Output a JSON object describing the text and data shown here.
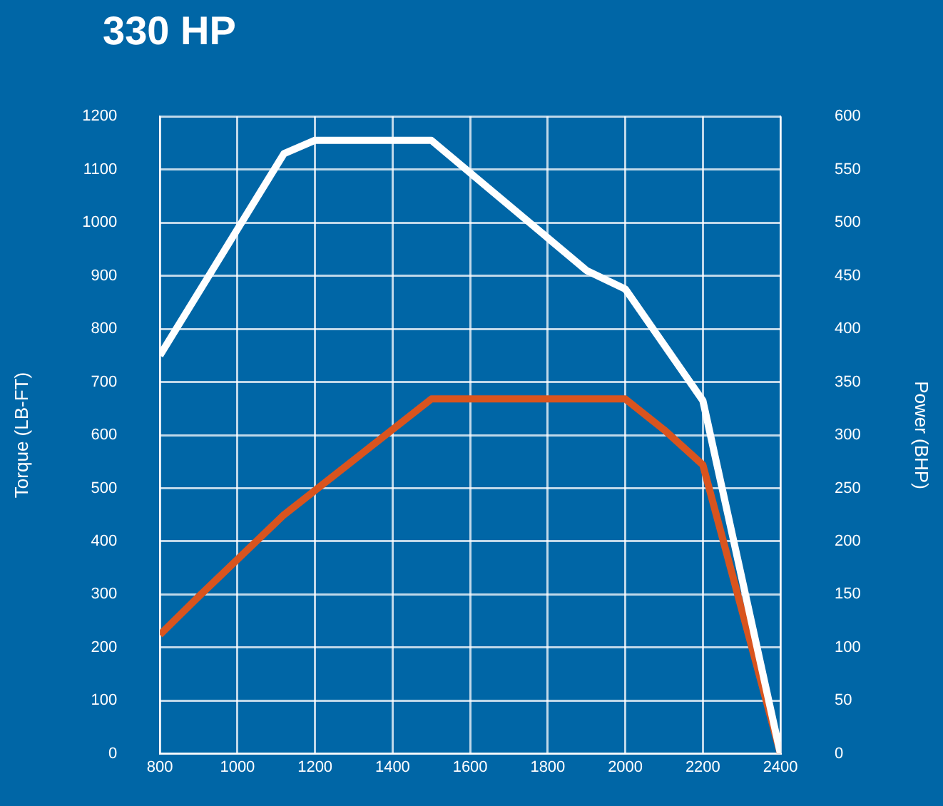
{
  "chart_data": {
    "type": "line",
    "title": "330 HP",
    "ylabel": "Torque (LB-FT)",
    "y2label": "Power (BHP)",
    "xlim": [
      800,
      2400
    ],
    "xticks": [
      800,
      1000,
      1200,
      1400,
      1600,
      1800,
      2000,
      2200,
      2400
    ],
    "ylim": [
      0,
      1200
    ],
    "yticks": [
      0,
      100,
      200,
      300,
      400,
      500,
      600,
      700,
      800,
      900,
      1000,
      1100,
      1200
    ],
    "y2lim": [
      0,
      600
    ],
    "y2ticks": [
      0,
      50,
      100,
      150,
      200,
      250,
      300,
      350,
      400,
      450,
      500,
      550,
      600
    ],
    "grid": true,
    "legend": false,
    "marker": "none",
    "line_style": "solid",
    "series": [
      {
        "color": "#ffffff",
        "x": [
          800,
          1120,
          1200,
          1500,
          1900,
          2000,
          2200,
          2400
        ],
        "values": [
          750,
          1130,
          1155,
          1155,
          910,
          875,
          665,
          0
        ]
      },
      {
        "color": "#d9541e",
        "axis": "y2",
        "x": [
          800,
          900,
          1120,
          1500,
          2000,
          2100,
          2200,
          2400
        ],
        "values": [
          112,
          148,
          225,
          334,
          334,
          305,
          272,
          0
        ]
      }
    ]
  }
}
